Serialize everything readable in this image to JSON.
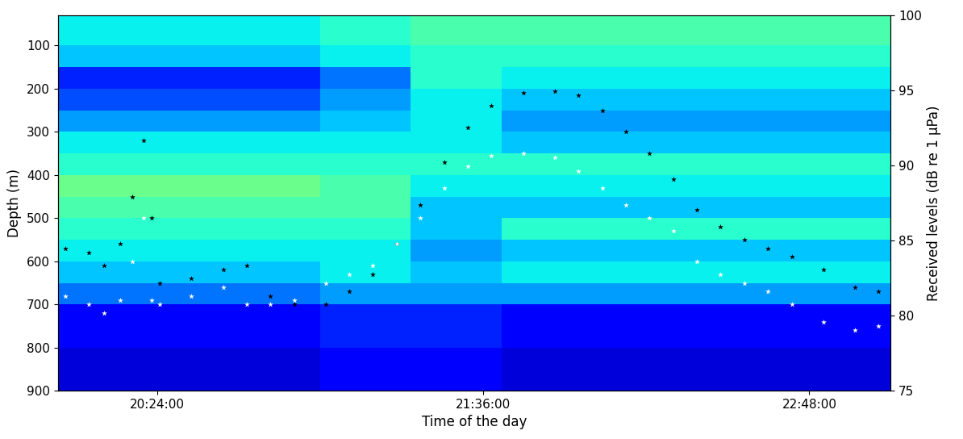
{
  "chart_data": {
    "type": "scatter",
    "x_label": "Time of the day",
    "y_label": "Depth (m)",
    "y2_label": "Received levels (dB re 1 µPa)",
    "xlim": [
      1202,
      1386
    ],
    "xticks": [
      {
        "value": 1224,
        "label": "20:24:00"
      },
      {
        "value": 1296,
        "label": "21:36:00"
      },
      {
        "value": 1368,
        "label": "22:48:00"
      }
    ],
    "ylim": [
      900,
      30
    ],
    "yticks": [
      100,
      200,
      300,
      400,
      500,
      600,
      700,
      800,
      900
    ],
    "y2lim": [
      75,
      100
    ],
    "y2ticks": [
      75,
      80,
      85,
      90,
      95,
      100
    ],
    "grid": false,
    "x": [
      1203.6,
      1208.8,
      1212.3,
      1215.8,
      1218.4,
      1221.0,
      1222.8,
      1224.5,
      1231.5,
      1238.5,
      1243.7,
      1249.0,
      1254.2,
      1261.2,
      1266.4,
      1271.6,
      1276.9,
      1282.1,
      1287.4,
      1292.6,
      1297.8,
      1304.8,
      1311.8,
      1317.0,
      1322.3,
      1327.5,
      1332.7,
      1338.0,
      1343.2,
      1348.4,
      1353.7,
      1358.9,
      1364.1,
      1371.1,
      1378.1,
      1383.3
    ],
    "series": [
      {
        "color": "#000000",
        "marker": "*",
        "values": [
          570,
          580,
          610,
          560,
          450,
          320,
          500,
          650,
          640,
          620,
          610,
          680,
          700,
          700,
          670,
          630,
          560,
          470,
          370,
          290,
          240,
          210,
          205,
          215,
          250,
          300,
          350,
          410,
          480,
          520,
          550,
          570,
          590,
          620,
          660,
          670
        ]
      },
      {
        "color": "#ffffff",
        "marker": "*",
        "values": [
          680,
          700,
          720,
          690,
          600,
          500,
          690,
          700,
          680,
          660,
          700,
          700,
          690,
          650,
          630,
          610,
          560,
          500,
          430,
          380,
          355,
          350,
          360,
          390,
          430,
          470,
          500,
          530,
          600,
          630,
          650,
          670,
          700,
          740,
          760,
          750
        ]
      }
    ],
    "heatmap": {
      "time_edges": [
        1202,
        1230,
        1260,
        1280,
        1300,
        1340,
        1386
      ],
      "depth_edges": [
        30,
        100,
        150,
        200,
        250,
        300,
        350,
        400,
        450,
        500,
        550,
        600,
        650,
        700,
        800,
        900
      ],
      "cells": [
        [
          84,
          84,
          85,
          86,
          86,
          86
        ],
        [
          83,
          83,
          84,
          85,
          85,
          85
        ],
        [
          79,
          79,
          81,
          85,
          84,
          84
        ],
        [
          80,
          80,
          82,
          84,
          83,
          83
        ],
        [
          82,
          82,
          83,
          84,
          82,
          82
        ],
        [
          84,
          84,
          84,
          84,
          83,
          83
        ],
        [
          85,
          85,
          85,
          85,
          85,
          85
        ],
        [
          87,
          87,
          86,
          84,
          84,
          84
        ],
        [
          86,
          86,
          86,
          83,
          83,
          83
        ],
        [
          85,
          85,
          85,
          83,
          85,
          85
        ],
        [
          84,
          84,
          84,
          82,
          83,
          83
        ],
        [
          83,
          83,
          84,
          83,
          84,
          84
        ],
        [
          81,
          81,
          82,
          82,
          82,
          82
        ],
        [
          78,
          78,
          79,
          79,
          78,
          78
        ],
        [
          77,
          77,
          78,
          78,
          77,
          77
        ]
      ]
    }
  }
}
